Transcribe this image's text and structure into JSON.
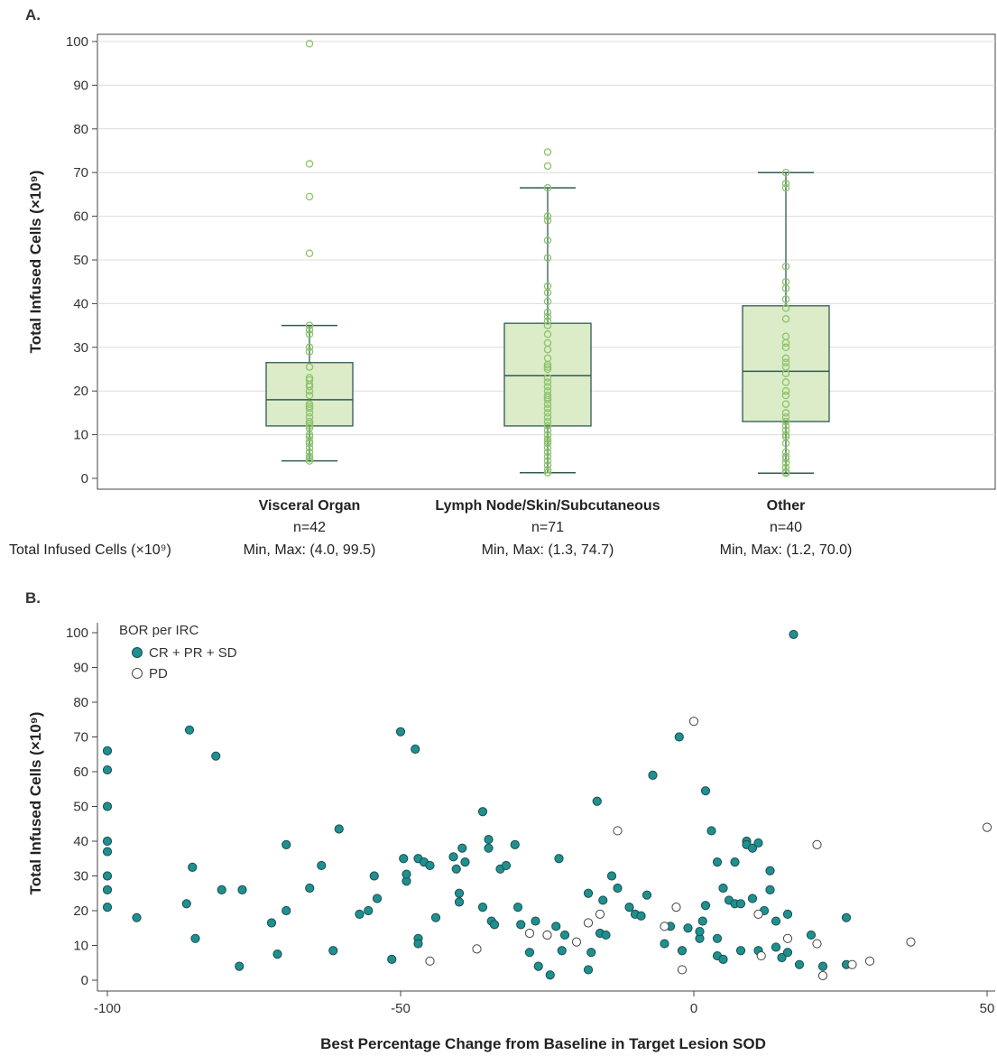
{
  "chart_data": [
    {
      "panel": "A.",
      "type": "box",
      "ylabel": "Total Infused Cells (×10⁹)",
      "ylim": [
        0,
        100
      ],
      "yticks": [
        "0",
        "10",
        "20",
        "30",
        "40",
        "50",
        "60",
        "70",
        "80",
        "90",
        "100"
      ],
      "grid": true,
      "row_label": "Total Infused Cells (×10⁹)",
      "groups": [
        {
          "name": "Visceral Organ",
          "n_label": "n=42",
          "range_label": "Min, Max: (4.0, 99.5)",
          "q1": 12,
          "median": 18,
          "q3": 26.5,
          "whisker_low": 4,
          "whisker_high": 35,
          "points": [
            99.5,
            72,
            64.5,
            51.5,
            35,
            34,
            33,
            30,
            29,
            25.5,
            23,
            22.5,
            21.5,
            21,
            20,
            19,
            17,
            16.5,
            16,
            15,
            14,
            13,
            12.5,
            12,
            11.5,
            10,
            9.5,
            8.5,
            8,
            7,
            6,
            5,
            4.5,
            4
          ]
        },
        {
          "name": "Lymph Node/Skin/Subcutaneous",
          "n_label": "n=71",
          "range_label": "Min, Max: (1.3, 74.7)",
          "q1": 12,
          "median": 23.5,
          "q3": 35.5,
          "whisker_low": 1.3,
          "whisker_high": 66.5,
          "points": [
            74.7,
            71.5,
            66.5,
            60,
            59,
            54.5,
            50.5,
            44,
            42.5,
            40.5,
            38,
            37,
            36,
            35,
            33,
            31,
            29.5,
            27.5,
            26,
            25.5,
            25,
            23,
            22,
            21,
            20,
            19,
            18.5,
            18,
            17,
            16,
            15,
            14,
            13,
            12,
            11,
            10,
            9,
            8.5,
            8,
            7,
            6,
            5,
            4,
            3,
            2,
            1.3
          ]
        },
        {
          "name": "Other",
          "n_label": "n=40",
          "range_label": "Min, Max: (1.2, 70.0)",
          "q1": 13,
          "median": 24.5,
          "q3": 39.5,
          "whisker_low": 1.2,
          "whisker_high": 70,
          "points": [
            70,
            67.5,
            66.5,
            48.5,
            45,
            43.5,
            41,
            39,
            36.5,
            32.5,
            31,
            30,
            27.5,
            26.5,
            25.5,
            24,
            22,
            20,
            19,
            17,
            15,
            14,
            13,
            12,
            11,
            10,
            9.5,
            8,
            6,
            5,
            4.5,
            3.5,
            2.5,
            1.5,
            1.2
          ]
        }
      ]
    },
    {
      "panel": "B.",
      "type": "scatter",
      "xlabel": "Best Percentage Change from Baseline in Target Lesion SOD",
      "ylabel": "Total Infused Cells (×10⁹)",
      "xlim": [
        -100,
        50
      ],
      "ylim": [
        0,
        100
      ],
      "xticks": [
        "-100",
        "-50",
        "0",
        "50"
      ],
      "yticks": [
        "0",
        "10",
        "20",
        "30",
        "40",
        "50",
        "60",
        "70",
        "80",
        "90",
        "100"
      ],
      "grid": false,
      "legend": {
        "title": "BOR per IRC",
        "position": "top-left",
        "entries": [
          {
            "label": "CR + PR + SD",
            "marker": "filled"
          },
          {
            "label": "PD",
            "marker": "open"
          }
        ]
      },
      "series": [
        {
          "name": "CR + PR + SD",
          "color": "#1f8f8f",
          "points": [
            [
              -100,
              66
            ],
            [
              -100,
              60.5
            ],
            [
              -100,
              50
            ],
            [
              -100,
              40
            ],
            [
              -100,
              37
            ],
            [
              -100,
              30
            ],
            [
              -100,
              26
            ],
            [
              -100,
              21
            ],
            [
              -95,
              18
            ],
            [
              -86,
              72
            ],
            [
              -86.5,
              22
            ],
            [
              -85.5,
              32.5
            ],
            [
              -85,
              12
            ],
            [
              -81.5,
              64.5
            ],
            [
              -80.5,
              26
            ],
            [
              -77.5,
              4
            ],
            [
              -77,
              26
            ],
            [
              -72,
              16.5
            ],
            [
              -71,
              7.5
            ],
            [
              -69.5,
              39
            ],
            [
              -69.5,
              20
            ],
            [
              -65.5,
              26.5
            ],
            [
              -63.5,
              33
            ],
            [
              -61.5,
              8.5
            ],
            [
              -60.5,
              43.5
            ],
            [
              -57,
              19
            ],
            [
              -55.5,
              20
            ],
            [
              -54.5,
              30
            ],
            [
              -54,
              23.5
            ],
            [
              -51.5,
              6
            ],
            [
              -50,
              71.5
            ],
            [
              -49.5,
              35
            ],
            [
              -49,
              28.5
            ],
            [
              -49,
              30.5
            ],
            [
              -47.5,
              66.5
            ],
            [
              -47,
              35
            ],
            [
              -47,
              12
            ],
            [
              -47,
              10.5
            ],
            [
              -46,
              34
            ],
            [
              -45,
              33
            ],
            [
              -44,
              18
            ],
            [
              -41,
              35.5
            ],
            [
              -40.5,
              32
            ],
            [
              -40,
              25
            ],
            [
              -40,
              22.5
            ],
            [
              -39.5,
              38
            ],
            [
              -39,
              34
            ],
            [
              -36,
              48.5
            ],
            [
              -36,
              21
            ],
            [
              -35,
              40.5
            ],
            [
              -35,
              38
            ],
            [
              -34.5,
              17
            ],
            [
              -34,
              16
            ],
            [
              -33,
              32
            ],
            [
              -32,
              33
            ],
            [
              -30.5,
              39
            ],
            [
              -30,
              21
            ],
            [
              -29.5,
              16
            ],
            [
              -28,
              8
            ],
            [
              -27,
              17
            ],
            [
              -26.5,
              4
            ],
            [
              -25,
              13
            ],
            [
              -24.5,
              1.5
            ],
            [
              -23.5,
              15.5
            ],
            [
              -23,
              35
            ],
            [
              -22.5,
              8.5
            ],
            [
              -22,
              13
            ],
            [
              -18,
              3
            ],
            [
              -18,
              25
            ],
            [
              -17.5,
              8
            ],
            [
              -16.5,
              51.5
            ],
            [
              -16,
              13.5
            ],
            [
              -15.5,
              23
            ],
            [
              -15,
              13
            ],
            [
              -14,
              30
            ],
            [
              -13,
              26.5
            ],
            [
              -11,
              21
            ],
            [
              -10,
              19
            ],
            [
              -9,
              18.5
            ],
            [
              -8,
              24.5
            ],
            [
              -7,
              59
            ],
            [
              -5,
              10.5
            ],
            [
              -4,
              15.5
            ],
            [
              -2.5,
              70
            ],
            [
              -2,
              8.5
            ],
            [
              -1,
              15
            ],
            [
              1,
              12
            ],
            [
              1,
              14
            ],
            [
              1.5,
              17
            ],
            [
              2,
              54.5
            ],
            [
              2,
              21.5
            ],
            [
              3,
              43
            ],
            [
              4,
              34
            ],
            [
              4,
              7
            ],
            [
              4,
              12
            ],
            [
              5,
              6
            ],
            [
              5,
              26.5
            ],
            [
              6,
              23
            ],
            [
              7,
              34
            ],
            [
              7,
              22
            ],
            [
              8,
              22
            ],
            [
              8,
              8.5
            ],
            [
              9,
              40
            ],
            [
              9,
              39
            ],
            [
              10,
              38
            ],
            [
              10,
              23.5
            ],
            [
              11,
              39.5
            ],
            [
              11,
              8.5
            ],
            [
              12,
              20
            ],
            [
              13,
              31.5
            ],
            [
              13,
              26
            ],
            [
              14,
              17
            ],
            [
              14,
              9.5
            ],
            [
              15,
              6.5
            ],
            [
              16,
              8
            ],
            [
              16,
              19
            ],
            [
              17,
              99.5
            ],
            [
              18,
              4.5
            ],
            [
              20,
              13
            ],
            [
              22,
              4
            ],
            [
              26,
              18
            ],
            [
              26,
              4.5
            ]
          ]
        },
        {
          "name": "PD",
          "color": "#ffffff",
          "points": [
            [
              -45,
              5.5
            ],
            [
              -37,
              9
            ],
            [
              -28,
              13.5
            ],
            [
              -25,
              13
            ],
            [
              -20,
              11
            ],
            [
              -18,
              16.5
            ],
            [
              -16,
              19
            ],
            [
              -13,
              43
            ],
            [
              0,
              74.5
            ],
            [
              -5,
              15.5
            ],
            [
              -3,
              21
            ],
            [
              -2,
              3
            ],
            [
              11,
              19
            ],
            [
              11.5,
              7
            ],
            [
              16,
              12
            ],
            [
              21,
              39
            ],
            [
              21,
              10.5
            ],
            [
              22,
              1.3
            ],
            [
              27,
              4.5
            ],
            [
              30,
              5.5
            ],
            [
              37,
              11
            ],
            [
              50,
              44
            ]
          ]
        }
      ]
    }
  ]
}
